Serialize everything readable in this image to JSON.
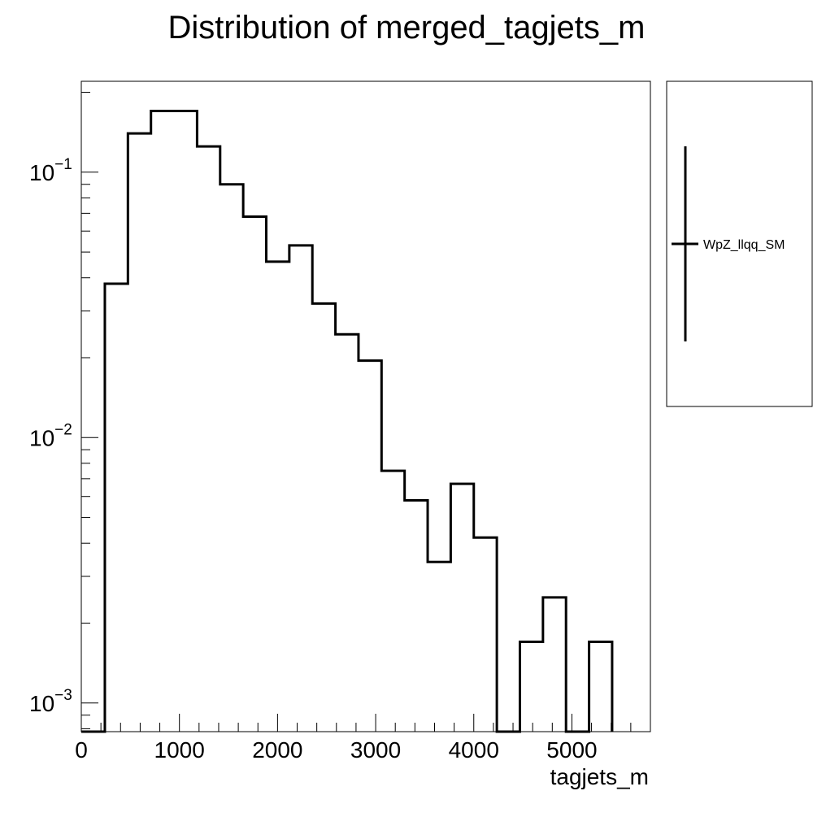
{
  "chart_data": {
    "type": "bar",
    "title": "Distribution of merged_tagjets_m",
    "xlabel": "tagjets_m",
    "ylabel": "",
    "xlim": [
      0,
      5800
    ],
    "ylim": [
      0.00078,
      0.22
    ],
    "log_y": true,
    "grid": false,
    "legend_position": "right",
    "bin_edges": [
      240,
      475,
      710,
      945,
      1180,
      1415,
      1650,
      1885,
      2120,
      2355,
      2590,
      2825,
      3060,
      3295,
      3530,
      3765,
      4000,
      4235,
      4470,
      4705,
      4940,
      5175,
      5410
    ],
    "series": [
      {
        "name": "WpZ_llqq_SM",
        "values": [
          0.038,
          0.14,
          0.17,
          0.17,
          0.125,
          0.09,
          0.068,
          0.046,
          0.053,
          0.032,
          0.0245,
          0.0195,
          0.0075,
          0.0058,
          0.0034,
          0.0067,
          0.0042,
          0.00065,
          0.0017,
          0.0025,
          0.00065,
          0.0017,
          0.00065
        ]
      }
    ],
    "x_ticks": [
      {
        "value": 0,
        "label": "0"
      },
      {
        "value": 1000,
        "label": "1000"
      },
      {
        "value": 2000,
        "label": "2000"
      },
      {
        "value": 3000,
        "label": "3000"
      },
      {
        "value": 4000,
        "label": "4000"
      },
      {
        "value": 5000,
        "label": "5000"
      }
    ],
    "y_ticks": [
      {
        "value": 0.1,
        "base": "10",
        "exp": "−1"
      },
      {
        "value": 0.01,
        "base": "10",
        "exp": "−2"
      },
      {
        "value": 0.001,
        "base": "10",
        "exp": "−3"
      }
    ],
    "colors": {
      "line": "#000000",
      "frame": "#000000",
      "background": "#ffffff"
    }
  }
}
